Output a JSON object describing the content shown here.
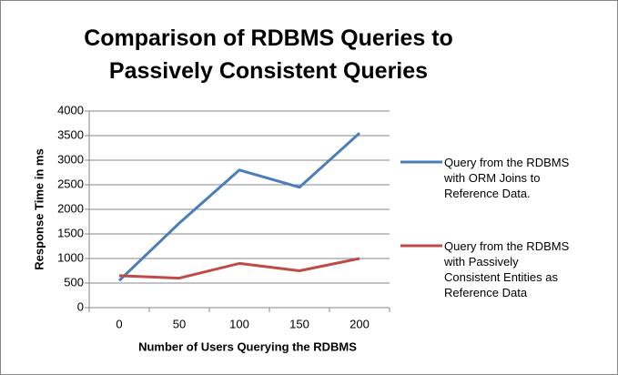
{
  "chart_data": {
    "type": "line",
    "title": "Comparison of RDBMS Queries to Passively Consistent Queries",
    "x_label": "Number of Users Querying the RDBMS",
    "y_label": "Response Time in ms",
    "categories": [
      "0",
      "50",
      "100",
      "150",
      "200"
    ],
    "series": [
      {
        "name": "Query from the RDBMS with ORM Joins to Reference Data.",
        "color": "#4a7ebb",
        "values": [
          550,
          1720,
          2800,
          2450,
          3550
        ]
      },
      {
        "name": "Query from the RDBMS with Passively Consistent Entities as Reference Data",
        "color": "#be4b48",
        "values": [
          650,
          600,
          900,
          750,
          1000
        ]
      }
    ],
    "ylim": [
      0,
      4000
    ],
    "yticks": [
      0,
      500,
      1000,
      1500,
      2000,
      2500,
      3000,
      3500,
      4000
    ],
    "grid": true
  }
}
